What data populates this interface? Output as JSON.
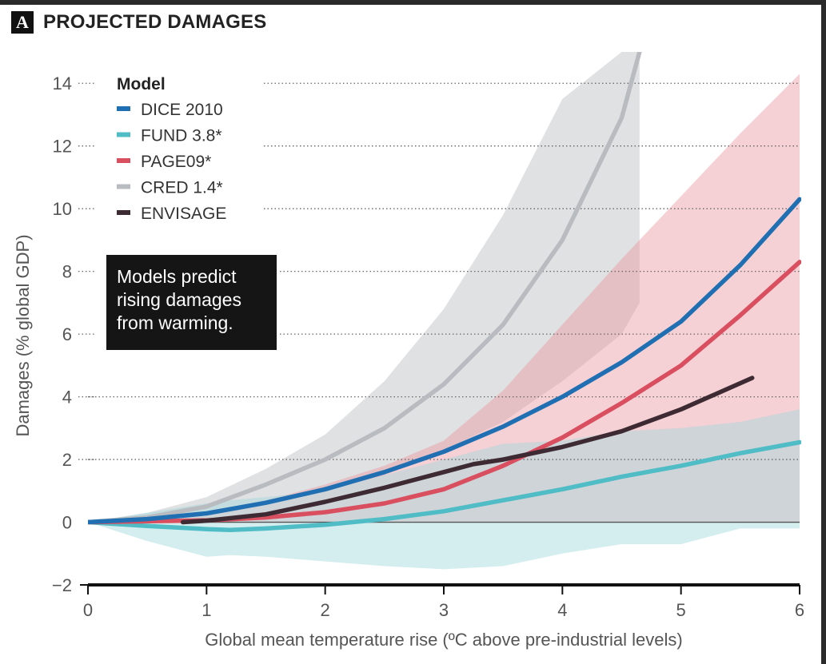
{
  "panel": {
    "letter": "A",
    "title": "PROJECTED DAMAGES"
  },
  "annotation": {
    "lines": [
      "Models predict",
      "rising damages",
      "from warming."
    ]
  },
  "chart_data": {
    "type": "line",
    "title": "PROJECTED DAMAGES",
    "xlabel": "Global mean temperature rise (ºC above pre-industrial levels)",
    "ylabel": "Damages (% global GDP)",
    "xlim": [
      0,
      6
    ],
    "ylim": [
      -2,
      15
    ],
    "xticks": [
      0,
      1,
      2,
      3,
      4,
      5,
      6
    ],
    "yticks": [
      -2,
      0,
      2,
      4,
      6,
      8,
      10,
      12,
      14
    ],
    "ytick_labels": [
      "−2",
      "0",
      "2",
      "4",
      "6",
      "8",
      "10",
      "12",
      "14"
    ],
    "grid": "dotted horizontal",
    "legend_title": "Model",
    "legend_position": "top-left",
    "series": [
      {
        "name": "DICE 2010",
        "color": "#1f6fb2",
        "x": [
          0,
          0.5,
          1,
          1.5,
          2,
          2.5,
          3,
          3.5,
          4,
          4.5,
          5,
          5.5,
          6
        ],
        "y": [
          0,
          0.1,
          0.28,
          0.62,
          1.05,
          1.6,
          2.25,
          3.05,
          4.0,
          5.1,
          6.4,
          8.2,
          10.3
        ]
      },
      {
        "name": "FUND 3.8*",
        "color": "#4fbcc6",
        "x": [
          0,
          0.5,
          1,
          1.2,
          1.5,
          2,
          2.5,
          3,
          3.5,
          4,
          4.5,
          5,
          5.5,
          6
        ],
        "y": [
          0,
          -0.12,
          -0.22,
          -0.25,
          -0.2,
          -0.08,
          0.1,
          0.35,
          0.7,
          1.05,
          1.45,
          1.8,
          2.2,
          2.55
        ],
        "band_upper": [
          0,
          0.3,
          0.6,
          0.7,
          0.8,
          1.0,
          1.5,
          2.0,
          2.5,
          2.6,
          2.9,
          3.0,
          3.2,
          3.6
        ],
        "band_lower": [
          0,
          -0.6,
          -1.1,
          -1.05,
          -1.1,
          -1.25,
          -1.4,
          -1.5,
          -1.4,
          -1.0,
          -0.7,
          -0.7,
          -0.2,
          -0.2
        ]
      },
      {
        "name": "PAGE09*",
        "color": "#d94f60",
        "x": [
          0,
          0.5,
          1,
          1.5,
          2,
          2.5,
          3,
          3.5,
          4,
          4.5,
          5,
          5.5,
          6
        ],
        "y": [
          0,
          0.03,
          0.06,
          0.15,
          0.32,
          0.6,
          1.05,
          1.8,
          2.7,
          3.8,
          5.0,
          6.6,
          8.3
        ],
        "band_upper": [
          0,
          0.1,
          0.3,
          0.7,
          1.2,
          1.8,
          2.6,
          4.2,
          6.3,
          8.4,
          10.4,
          12.4,
          14.3
        ],
        "band_lower": [
          0,
          0,
          0,
          0,
          0,
          0,
          0,
          0,
          0,
          0,
          0,
          0,
          0
        ]
      },
      {
        "name": "CRED 1.4*",
        "color": "#b8bcc0",
        "x": [
          0,
          0.5,
          1,
          1.5,
          2,
          2.5,
          3,
          3.5,
          4,
          4.5,
          4.65
        ],
        "y": [
          0,
          0.15,
          0.5,
          1.2,
          2.0,
          3.0,
          4.4,
          6.3,
          9.0,
          12.9,
          15
        ],
        "band_upper": [
          0,
          0.3,
          0.8,
          1.7,
          2.8,
          4.5,
          6.8,
          9.8,
          13.5,
          15,
          15
        ],
        "band_lower": [
          0,
          0.05,
          0.3,
          0.6,
          1.0,
          1.5,
          2.3,
          3.2,
          4.5,
          6.0,
          7.0
        ]
      },
      {
        "name": "ENVISAGE",
        "color": "#3d2a33",
        "x": [
          0.8,
          1,
          1.5,
          2,
          2.5,
          3,
          3.25,
          3.5,
          4,
          4.5,
          5,
          5.6
        ],
        "y": [
          0,
          0.05,
          0.25,
          0.65,
          1.1,
          1.6,
          1.85,
          2.0,
          2.4,
          2.9,
          3.6,
          4.6
        ]
      }
    ]
  }
}
